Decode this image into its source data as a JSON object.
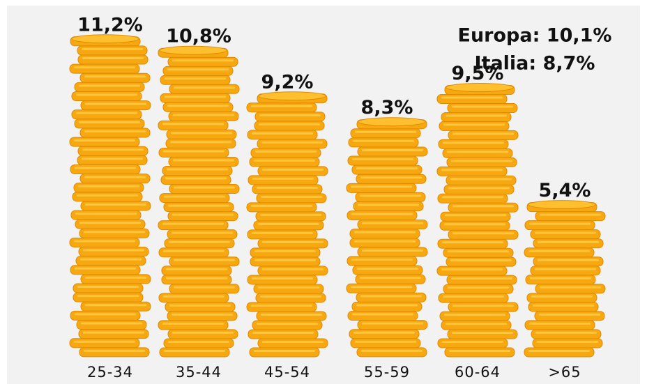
{
  "chart_data": {
    "type": "bar",
    "categories": [
      "25-34",
      "35-44",
      "45-54",
      "55-59",
      "60-64",
      ">65"
    ],
    "values": [
      11.2,
      10.8,
      9.2,
      8.3,
      9.5,
      5.4
    ],
    "value_labels": [
      "11,2%",
      "10,8%",
      "9,2%",
      "8,3%",
      "9,5%",
      "5,4%"
    ],
    "color": "#f7a810",
    "annotations": [
      "Europa: 10,1%",
      "Italia: 8,7%"
    ]
  }
}
